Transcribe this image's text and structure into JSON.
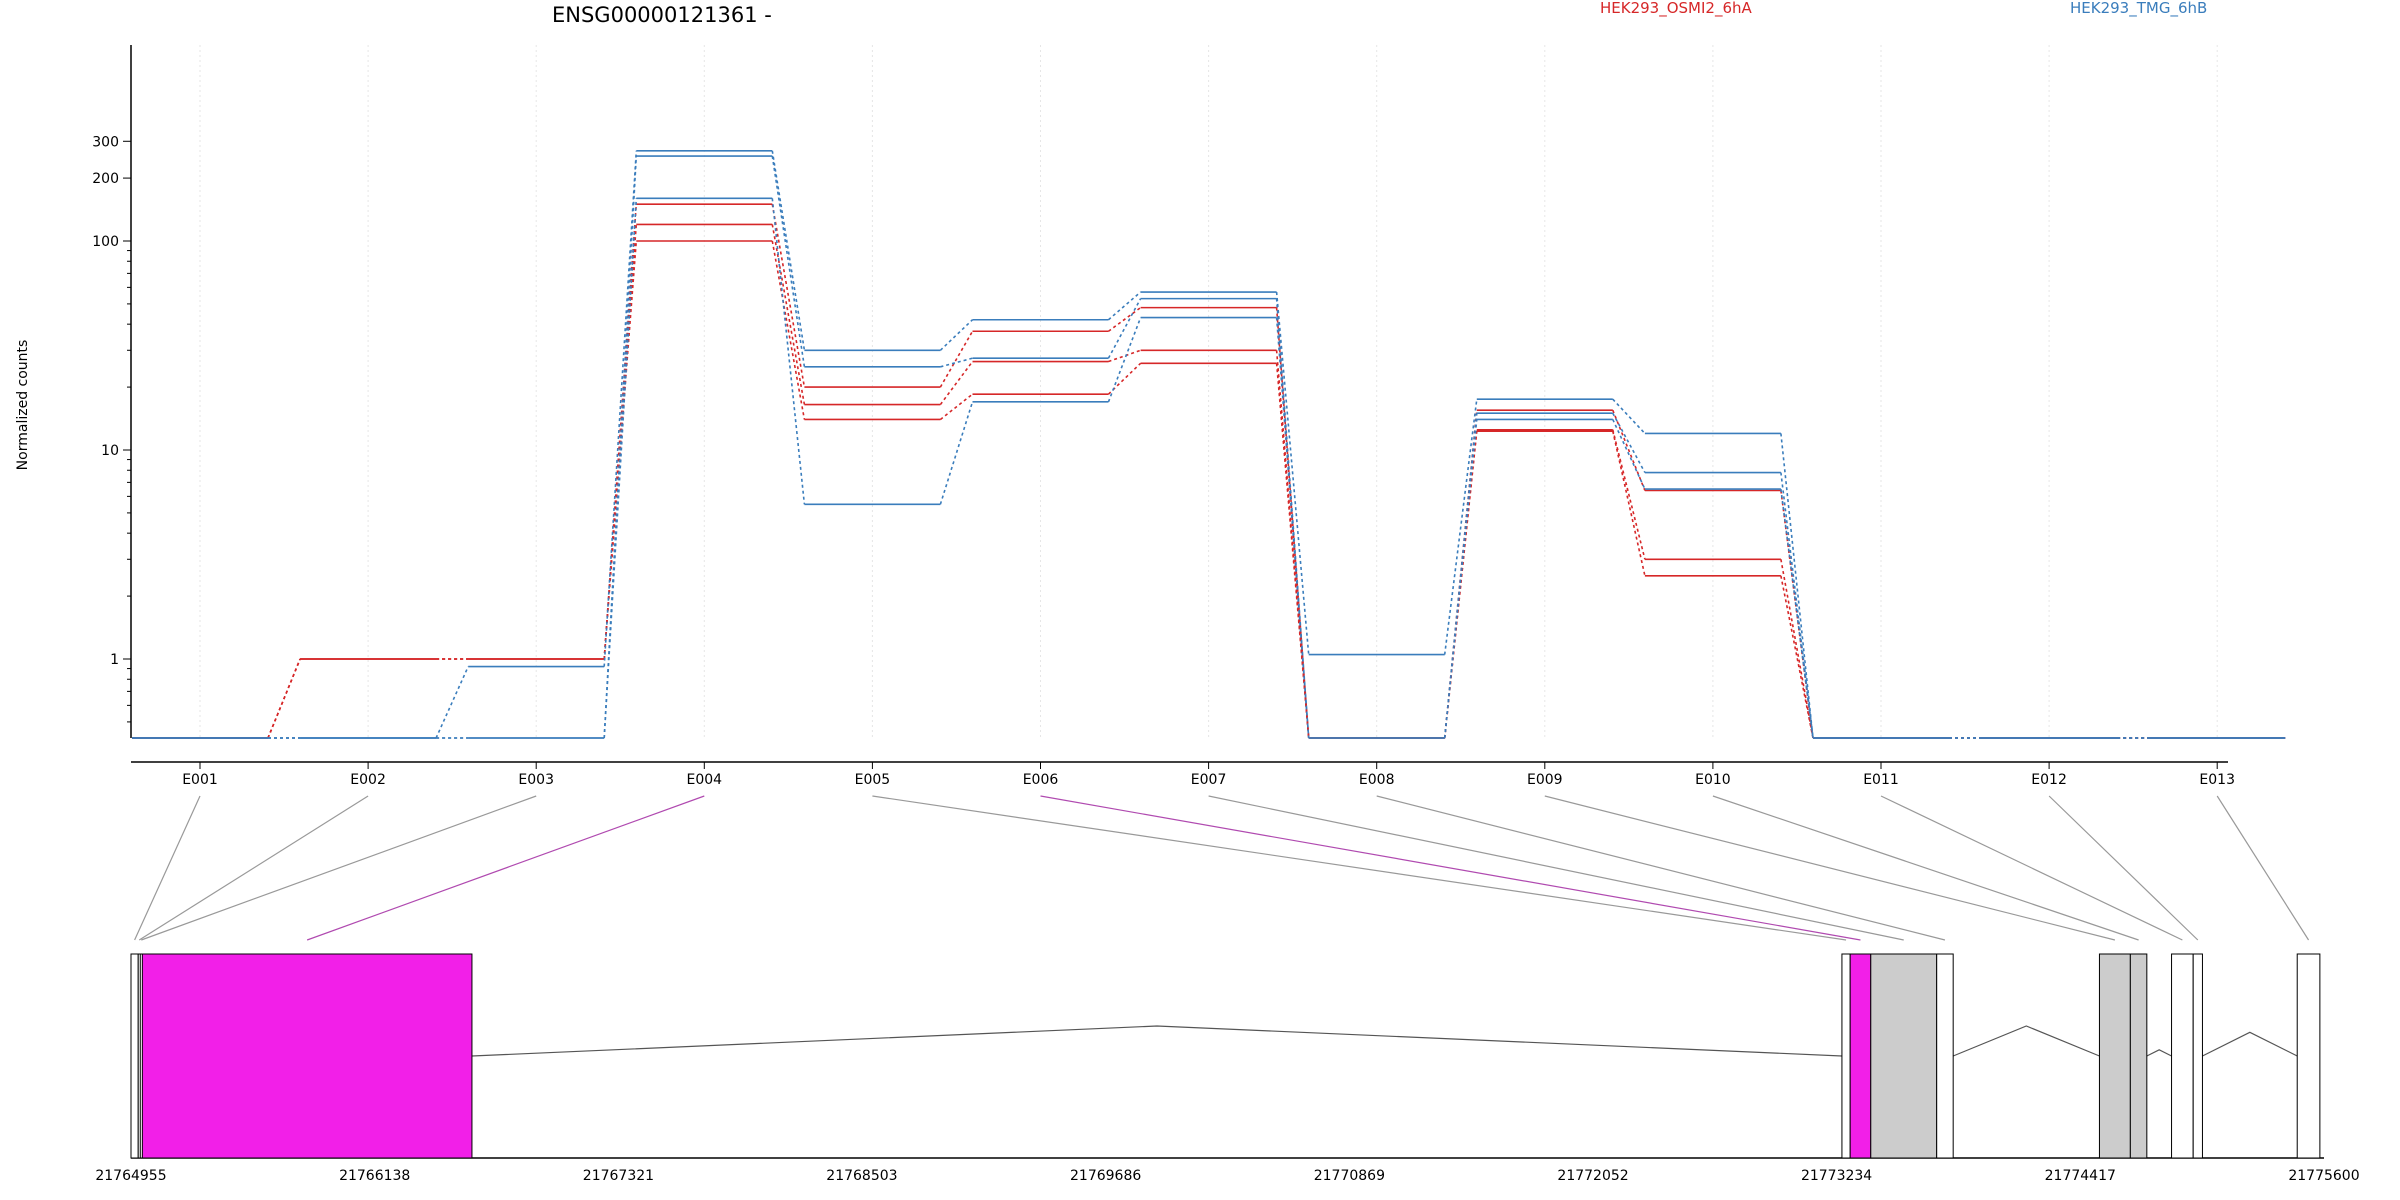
{
  "chart_data": {
    "type": "line",
    "title": "ENSG00000121361 -",
    "ylabel": "Normalized counts",
    "y_scale": "log",
    "y_ticks": [
      1,
      10,
      100,
      200,
      300
    ],
    "categories": [
      "E001",
      "E002",
      "E003",
      "E004",
      "E005",
      "E006",
      "E007",
      "E008",
      "E009",
      "E010",
      "E011",
      "E012",
      "E013"
    ],
    "legend": [
      {
        "label": "HEK293_OSMI2_6hA",
        "color": "#d62728",
        "position": "top-center"
      },
      {
        "label": "HEK293_TMG_6hB",
        "color": "#3a7dbc",
        "position": "top-right"
      }
    ],
    "series": [
      {
        "group": "HEK293_OSMI2_6hA",
        "color": "#d62728",
        "values": [
          0,
          1.0,
          1.0,
          150,
          20,
          37,
          48,
          0,
          15.5,
          6.4,
          0,
          0,
          0
        ]
      },
      {
        "group": "HEK293_OSMI2_6hA",
        "color": "#d62728",
        "values": [
          0,
          1.0,
          1.0,
          120,
          16.5,
          26.5,
          30,
          0,
          12.5,
          3.0,
          0,
          0,
          0
        ]
      },
      {
        "group": "HEK293_OSMI2_6hA",
        "color": "#d62728",
        "values": [
          0,
          1.0,
          1.0,
          100,
          14,
          18.5,
          26,
          0,
          12.3,
          2.5,
          0,
          0,
          0
        ]
      },
      {
        "group": "HEK293_TMG_6hB",
        "color": "#3a7dbc",
        "values": [
          0,
          0,
          0.92,
          270,
          30,
          42,
          57,
          1.05,
          17.5,
          12,
          0,
          0,
          0
        ]
      },
      {
        "group": "HEK293_TMG_6hB",
        "color": "#3a7dbc",
        "values": [
          0,
          0,
          0,
          255,
          25,
          27.5,
          53,
          0,
          15,
          7.8,
          0,
          0,
          0
        ]
      },
      {
        "group": "HEK293_TMG_6hB",
        "color": "#3a7dbc",
        "values": [
          0,
          0,
          0,
          160,
          5.5,
          17,
          43,
          0,
          14,
          6.5,
          0,
          0,
          0
        ]
      }
    ],
    "gene_model": {
      "coord_ticks": [
        "21764955",
        "21766138",
        "21767321",
        "21768503",
        "21769686",
        "21770869",
        "21772052",
        "21773234",
        "21774417",
        "21775600"
      ],
      "exons": [
        {
          "id": "E001",
          "start": 21764955,
          "end": 21764990,
          "fill": "#ffffff"
        },
        {
          "id": "E002",
          "start": 21764990,
          "end": 21765000,
          "fill": "#ffffff"
        },
        {
          "id": "E003",
          "start": 21765000,
          "end": 21765010,
          "fill": "#ffffff"
        },
        {
          "id": "E004",
          "start": 21765010,
          "end": 21766610,
          "fill": "#f21fe8"
        },
        {
          "id": "E005",
          "start": 21773260,
          "end": 21773300,
          "fill": "#ffffff"
        },
        {
          "id": "E006",
          "start": 21773300,
          "end": 21773400,
          "fill": "#f21fe8"
        },
        {
          "id": "E007",
          "start": 21773400,
          "end": 21773720,
          "fill": "#cccccc"
        },
        {
          "id": "E008",
          "start": 21773720,
          "end": 21773800,
          "fill": "#ffffff"
        },
        {
          "id": "E009",
          "start": 21774510,
          "end": 21774660,
          "fill": "#cccccc"
        },
        {
          "id": "E010",
          "start": 21774660,
          "end": 21774740,
          "fill": "#cccccc"
        },
        {
          "id": "E011",
          "start": 21774860,
          "end": 21774965,
          "fill": "#ffffff"
        },
        {
          "id": "E012",
          "start": 21774965,
          "end": 21775010,
          "fill": "#ffffff"
        },
        {
          "id": "E013",
          "start": 21775470,
          "end": 21775580,
          "fill": "#ffffff"
        }
      ]
    }
  }
}
